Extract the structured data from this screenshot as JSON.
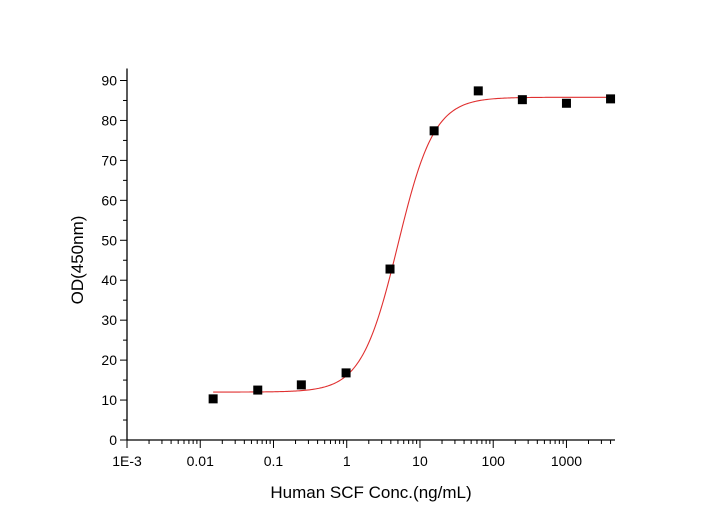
{
  "chart_data": {
    "type": "scatter",
    "title": "",
    "xlabel": "Human SCF Conc.(ng/mL)",
    "ylabel": "OD(450nm)",
    "x_scale": "log",
    "xlim": [
      0.001,
      4600
    ],
    "ylim": [
      0,
      90
    ],
    "x_ticks": [
      0.001,
      0.01,
      0.1,
      1,
      10,
      100,
      1000
    ],
    "x_tick_labels": [
      "1E-3",
      "0.01",
      "0.1",
      "1",
      "10",
      "100",
      "1000"
    ],
    "y_ticks": [
      0,
      10,
      20,
      30,
      40,
      50,
      60,
      70,
      80,
      90
    ],
    "y_tick_labels": [
      "0",
      "10",
      "20",
      "30",
      "40",
      "50",
      "60",
      "70",
      "80",
      "90"
    ],
    "grid": false,
    "series": [
      {
        "marker": "square",
        "color": "#000000",
        "x": [
          0.015,
          0.061,
          0.24,
          0.98,
          3.9,
          15.6,
          62.5,
          250,
          1000,
          4000
        ],
        "y": [
          10.3,
          12.5,
          13.8,
          16.8,
          42.8,
          77.4,
          87.4,
          85.2,
          84.3,
          85.4
        ]
      }
    ],
    "fit": {
      "type": "4PL",
      "color": "#e03030",
      "bottom": 12.0,
      "top": 85.8,
      "ec50": 5.0,
      "hill": 1.75,
      "x_range": [
        0.015,
        4000
      ]
    }
  }
}
